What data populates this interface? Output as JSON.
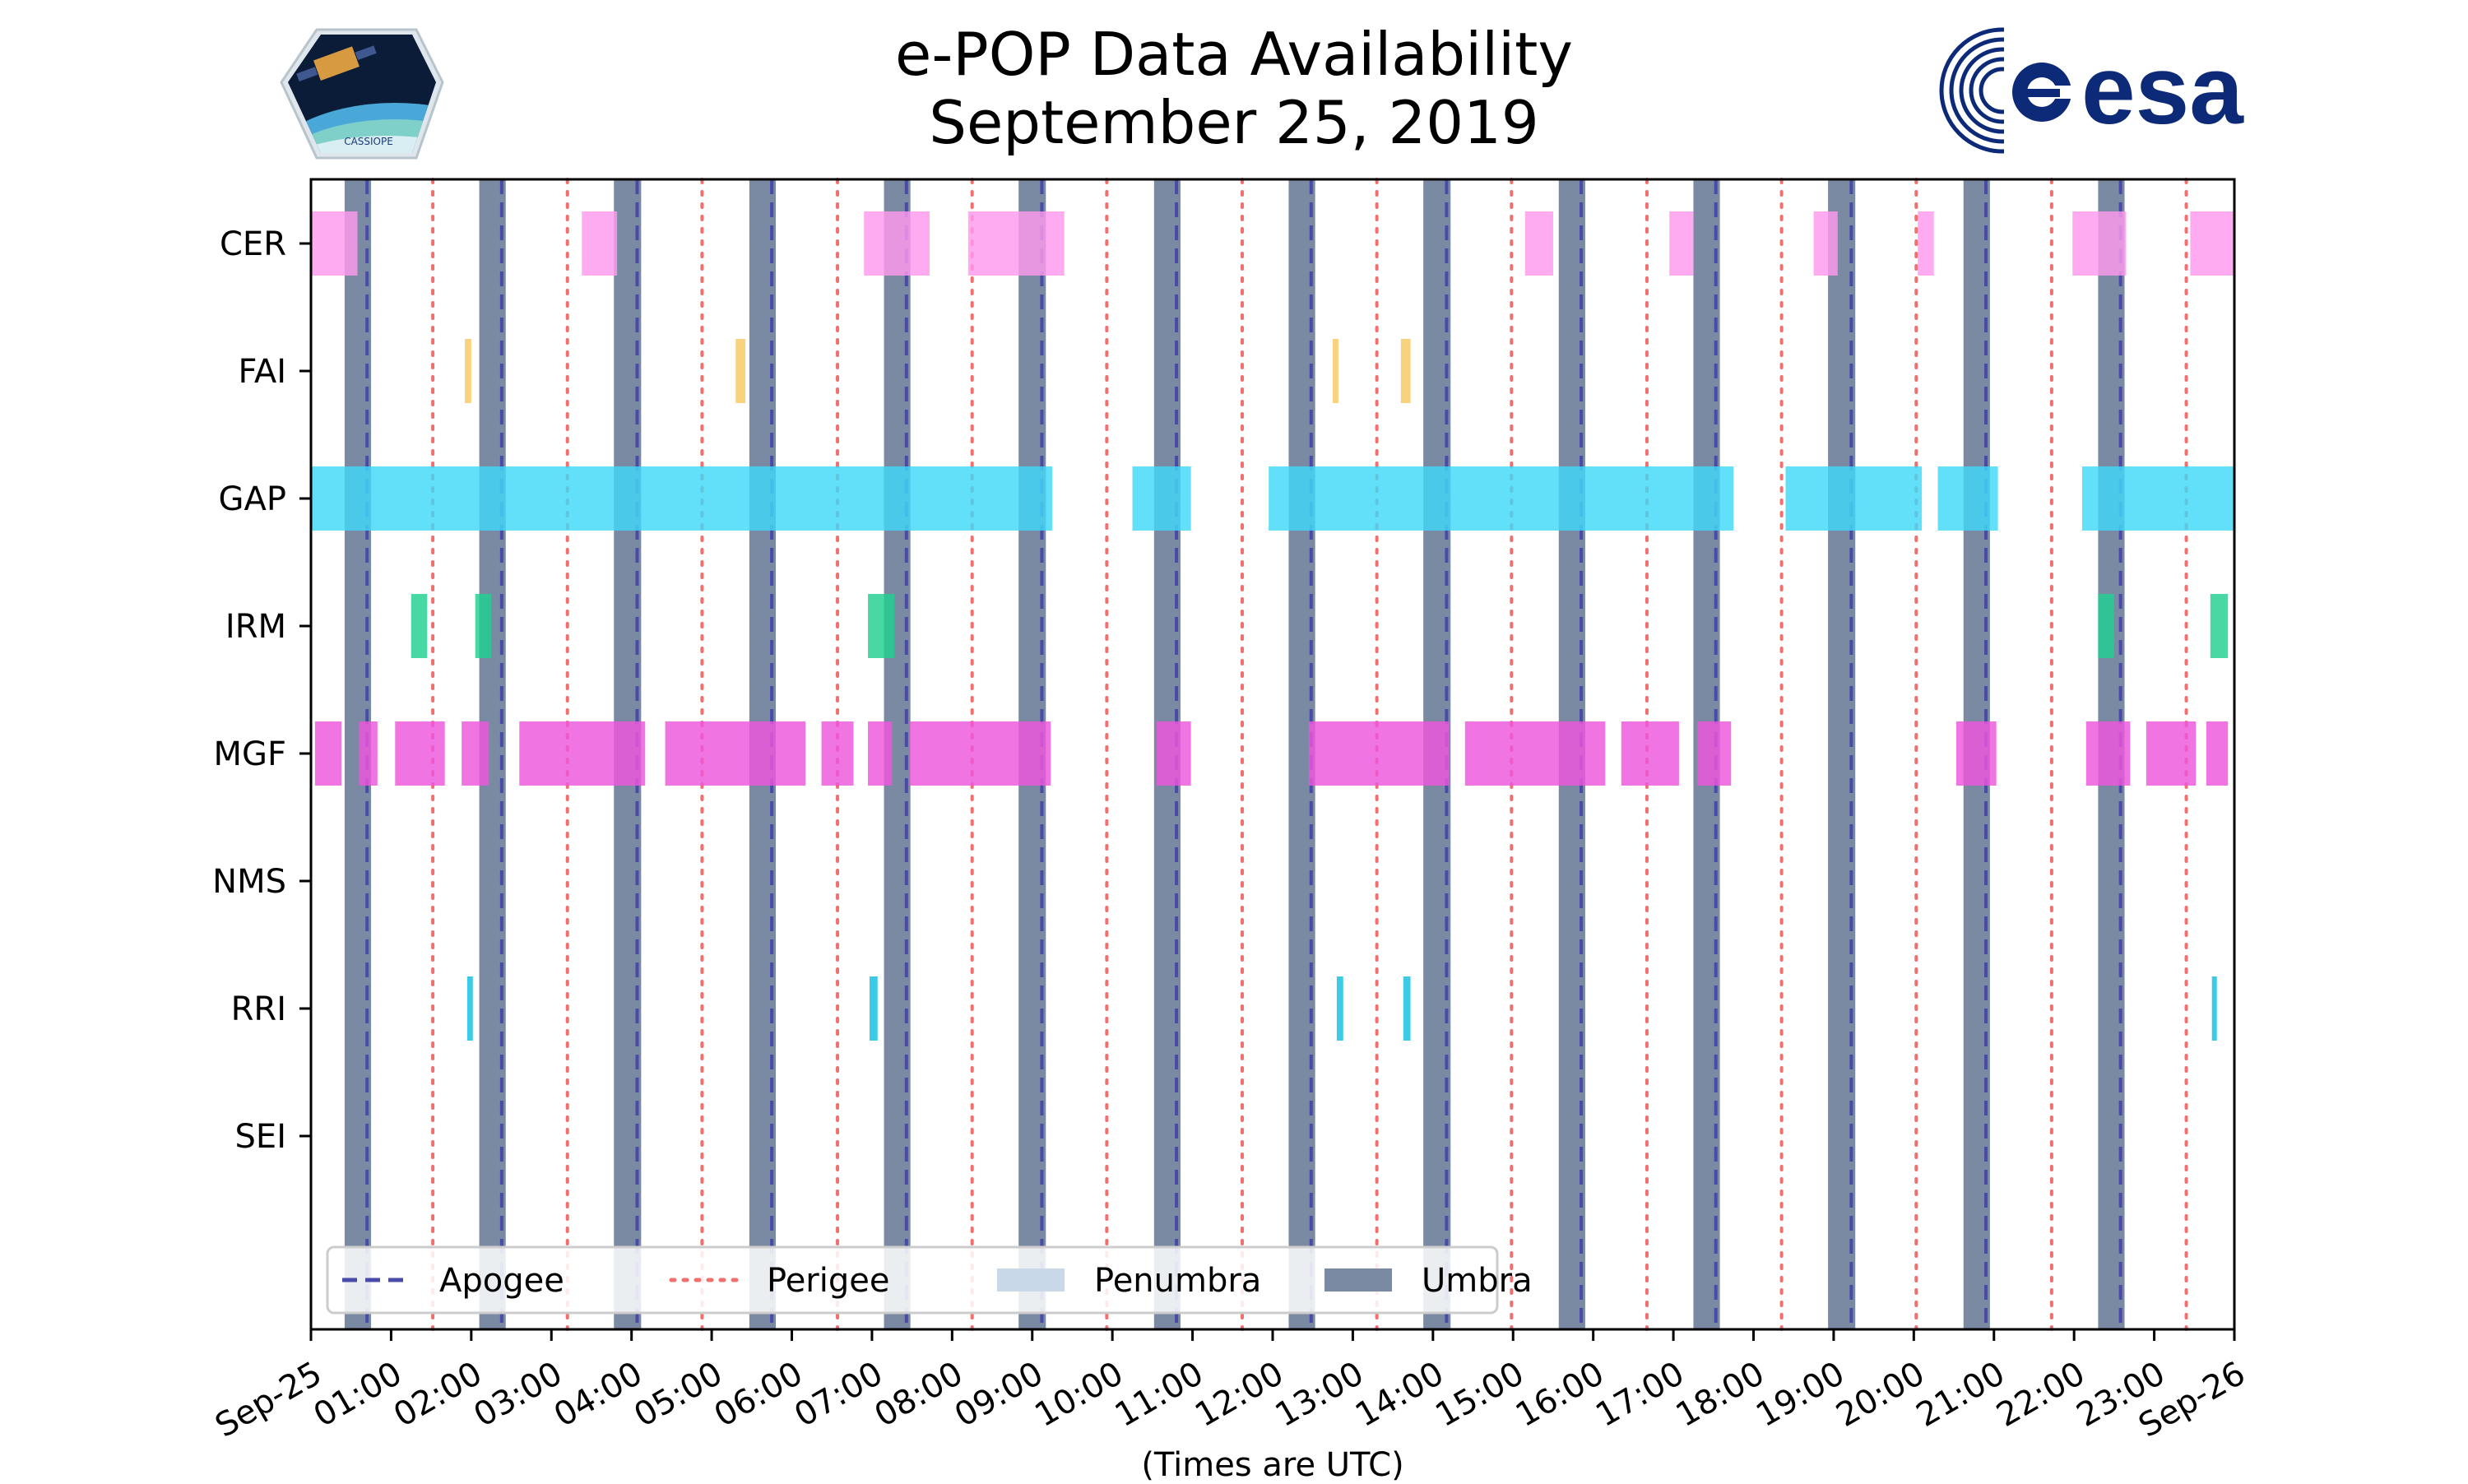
{
  "title_line1": "e-POP Data Availability",
  "title_line2": "September 25, 2019",
  "logos": {
    "left": {
      "name": "CASSIOPE mission patch",
      "text": "CASSIOPE"
    },
    "right": {
      "name": "ESA logo",
      "text": "esa"
    }
  },
  "colors": {
    "CER": "#ff99ee",
    "FAI": "#f8c860",
    "GAP": "#40d8f8",
    "IRM": "#20d090",
    "MGF": "#ee55dd",
    "RRI": "#10c0e0",
    "umbra": "#7a8aa2",
    "penumbra": "#c8d8e8",
    "apogee": "#4a4aa8",
    "perigee": "#f07070"
  },
  "chart_data": {
    "type": "timeline",
    "xlabel": "(Times are UTC)",
    "xlim_hours": [
      0,
      24
    ],
    "x_tick_labels": [
      "Sep-25",
      "01:00",
      "02:00",
      "03:00",
      "04:00",
      "05:00",
      "06:00",
      "07:00",
      "08:00",
      "09:00",
      "10:00",
      "11:00",
      "12:00",
      "13:00",
      "14:00",
      "15:00",
      "16:00",
      "17:00",
      "18:00",
      "19:00",
      "20:00",
      "21:00",
      "22:00",
      "23:00",
      "Sep-26"
    ],
    "instruments": [
      "CER",
      "FAI",
      "GAP",
      "IRM",
      "MGF",
      "NMS",
      "RRI",
      "SEI"
    ],
    "intervals_hours": {
      "CER": [
        [
          0.0,
          0.58
        ],
        [
          3.38,
          3.82
        ],
        [
          6.9,
          7.72
        ],
        [
          8.2,
          9.4
        ],
        [
          15.15,
          15.5
        ],
        [
          16.95,
          17.25
        ],
        [
          18.75,
          19.05
        ],
        [
          20.05,
          20.25
        ],
        [
          21.98,
          22.65
        ],
        [
          23.45,
          24.0
        ]
      ],
      "FAI": [
        [
          1.92,
          2.0
        ],
        [
          5.3,
          5.42
        ],
        [
          12.75,
          12.82
        ],
        [
          13.6,
          13.72
        ]
      ],
      "GAP": [
        [
          0.0,
          9.25
        ],
        [
          10.25,
          10.98
        ],
        [
          11.95,
          17.75
        ],
        [
          18.4,
          20.1
        ],
        [
          20.3,
          21.05
        ],
        [
          22.1,
          24.0
        ]
      ],
      "IRM": [
        [
          1.25,
          1.45
        ],
        [
          2.05,
          2.25
        ],
        [
          6.95,
          7.28
        ],
        [
          22.3,
          22.5
        ],
        [
          23.7,
          23.92
        ]
      ],
      "MGF": [
        [
          0.05,
          0.38
        ],
        [
          0.6,
          0.83
        ],
        [
          1.05,
          1.67
        ],
        [
          1.88,
          2.22
        ],
        [
          2.6,
          4.17
        ],
        [
          4.42,
          6.17
        ],
        [
          6.37,
          6.77
        ],
        [
          6.95,
          7.25
        ],
        [
          7.47,
          9.23
        ],
        [
          10.55,
          10.98
        ],
        [
          12.45,
          14.2
        ],
        [
          14.4,
          16.15
        ],
        [
          16.35,
          17.07
        ],
        [
          17.3,
          17.72
        ],
        [
          20.53,
          21.03
        ],
        [
          22.15,
          22.7
        ],
        [
          22.9,
          23.52
        ],
        [
          23.65,
          23.92
        ]
      ],
      "NMS": [],
      "RRI": [
        [
          1.95,
          2.02
        ],
        [
          6.97,
          7.07
        ],
        [
          12.8,
          12.88
        ],
        [
          13.63,
          13.72
        ],
        [
          23.72,
          23.78
        ]
      ],
      "SEI": []
    },
    "umbra_hours": [
      [
        0.42,
        0.75
      ],
      [
        2.1,
        2.43
      ],
      [
        3.78,
        4.12
      ],
      [
        5.47,
        5.8
      ],
      [
        7.15,
        7.48
      ],
      [
        8.83,
        9.17
      ],
      [
        10.52,
        10.85
      ],
      [
        12.2,
        12.53
      ],
      [
        13.88,
        14.22
      ],
      [
        15.57,
        15.9
      ],
      [
        17.25,
        17.58
      ],
      [
        18.93,
        19.27
      ],
      [
        20.62,
        20.95
      ],
      [
        22.3,
        22.63
      ]
    ],
    "apogee_hours": [
      0.7,
      2.38,
      4.07,
      5.75,
      7.43,
      9.12,
      10.8,
      12.48,
      14.17,
      15.85,
      17.53,
      19.22,
      20.9,
      22.58
    ],
    "perigee_hours": [
      1.52,
      3.2,
      4.88,
      6.57,
      8.25,
      9.93,
      11.62,
      13.3,
      14.98,
      16.67,
      18.35,
      20.03,
      21.72,
      23.4
    ],
    "legend": {
      "position": "lower-left",
      "entries": [
        "Apogee",
        "Perigee",
        "Penumbra",
        "Umbra"
      ]
    }
  }
}
